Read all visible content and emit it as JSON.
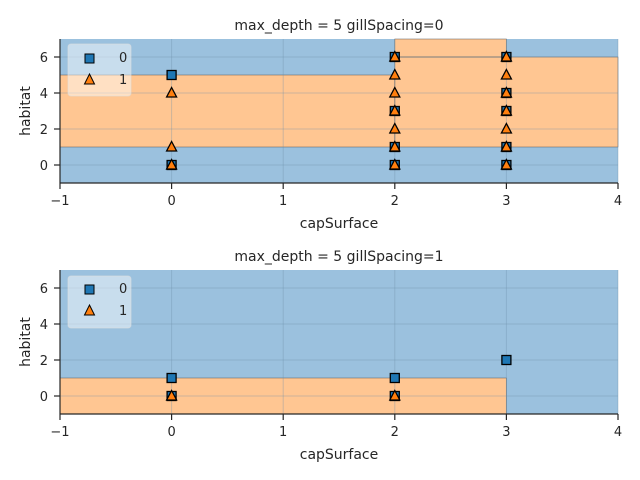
{
  "chart_data": [
    {
      "type": "scatter",
      "title": "max_depth = 5 gillSpacing=0",
      "xlabel": "capSurface",
      "ylabel": "habitat",
      "xlim": [
        -1,
        4
      ],
      "ylim": [
        -1,
        7
      ],
      "xticks": [
        "-1",
        "0",
        "1",
        "2",
        "3",
        "4"
      ],
      "yticks": [
        "0",
        "2",
        "4",
        "6"
      ],
      "legend": {
        "placement": "top-left",
        "entries": [
          "0",
          "1"
        ]
      },
      "grid": true,
      "region_colors": {
        "class0": "#9bc1de",
        "class1": "#ffc692"
      },
      "decision_regions": [
        {
          "class": 0,
          "x": [
            -1,
            4
          ],
          "y": [
            -1,
            1
          ]
        },
        {
          "class": 1,
          "x": [
            -1,
            2
          ],
          "y": [
            1,
            5
          ]
        },
        {
          "class": 0,
          "x": [
            -1,
            2
          ],
          "y": [
            5,
            7
          ]
        },
        {
          "class": 1,
          "x": [
            2,
            4
          ],
          "y": [
            1,
            6
          ]
        },
        {
          "class": 0,
          "x": [
            3,
            4
          ],
          "y": [
            6,
            7
          ]
        },
        {
          "class": 1,
          "x": [
            2,
            3
          ],
          "y": [
            6,
            7
          ]
        }
      ],
      "series": [
        {
          "name": "0",
          "marker": "square",
          "color": "#1f77b4",
          "points": [
            [
              0,
              5
            ],
            [
              0,
              0
            ],
            [
              2,
              6
            ],
            [
              2,
              3
            ],
            [
              2,
              1
            ],
            [
              2,
              0
            ],
            [
              3,
              6
            ],
            [
              3,
              4
            ],
            [
              3,
              3
            ],
            [
              3,
              1
            ],
            [
              3,
              0
            ]
          ]
        },
        {
          "name": "1",
          "marker": "triangle",
          "color": "#ff7f0e",
          "points": [
            [
              0,
              4
            ],
            [
              0,
              1
            ],
            [
              0,
              0
            ],
            [
              2,
              6
            ],
            [
              2,
              5
            ],
            [
              2,
              4
            ],
            [
              2,
              3
            ],
            [
              2,
              2
            ],
            [
              2,
              1
            ],
            [
              2,
              0
            ],
            [
              3,
              6
            ],
            [
              3,
              5
            ],
            [
              3,
              4
            ],
            [
              3,
              3
            ],
            [
              3,
              2
            ],
            [
              3,
              1
            ],
            [
              3,
              0
            ]
          ]
        }
      ]
    },
    {
      "type": "scatter",
      "title": "max_depth = 5 gillSpacing=1",
      "xlabel": "capSurface",
      "ylabel": "habitat",
      "xlim": [
        -1,
        4
      ],
      "ylim": [
        -1,
        7
      ],
      "xticks": [
        "-1",
        "0",
        "1",
        "2",
        "3",
        "4"
      ],
      "yticks": [
        "0",
        "2",
        "4",
        "6"
      ],
      "legend": {
        "placement": "top-left",
        "entries": [
          "0",
          "1"
        ]
      },
      "grid": true,
      "region_colors": {
        "class0": "#9bc1de",
        "class1": "#ffc692"
      },
      "decision_regions": [
        {
          "class": 0,
          "x": [
            -1,
            4
          ],
          "y": [
            -1,
            7
          ]
        },
        {
          "class": 1,
          "x": [
            -1,
            3
          ],
          "y": [
            -1,
            1
          ]
        }
      ],
      "series": [
        {
          "name": "0",
          "marker": "square",
          "color": "#1f77b4",
          "points": [
            [
              0,
              1
            ],
            [
              0,
              0
            ],
            [
              2,
              1
            ],
            [
              2,
              0
            ],
            [
              3,
              2
            ]
          ]
        },
        {
          "name": "1",
          "marker": "triangle",
          "color": "#ff7f0e",
          "points": [
            [
              0,
              0
            ],
            [
              2,
              0
            ]
          ]
        }
      ]
    }
  ]
}
